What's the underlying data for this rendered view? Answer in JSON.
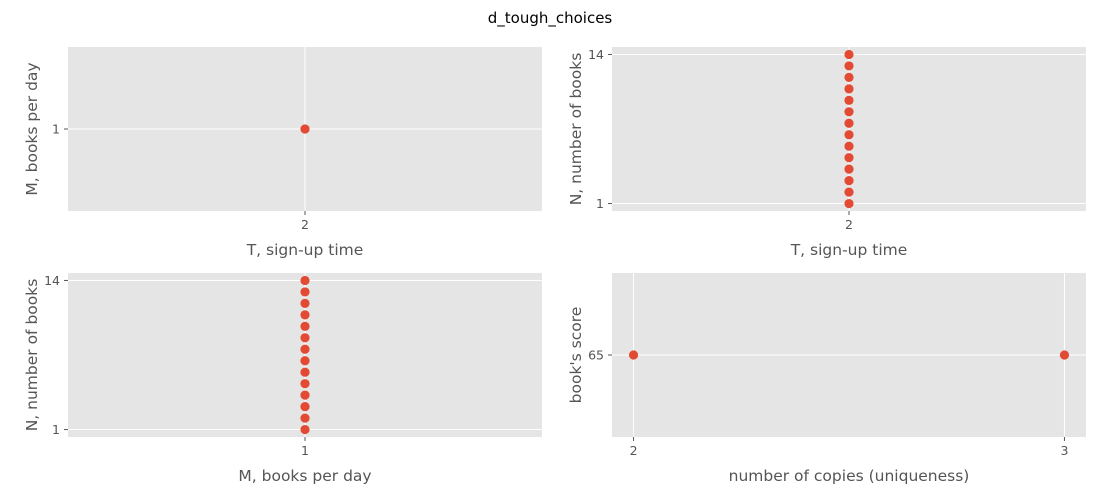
{
  "figure": {
    "title": "d_tough_choices",
    "background": "#ffffff",
    "panel_background": "#e5e5e5",
    "grid_color": "#ffffff",
    "marker_color": "#e24a33"
  },
  "chart_data": [
    {
      "type": "scatter",
      "title": "",
      "xlabel": "T, sign-up time",
      "ylabel": "M, books per day",
      "xlim": [
        1.945,
        2.055
      ],
      "ylim": [
        0.945,
        1.055
      ],
      "xticks": [
        2
      ],
      "xtick_labels": [
        "2"
      ],
      "yticks": [
        1
      ],
      "ytick_labels": [
        "1"
      ],
      "grid": true,
      "x": [
        2
      ],
      "y": [
        1
      ]
    },
    {
      "type": "scatter",
      "title": "",
      "xlabel": "T, sign-up time",
      "ylabel": "N, number of books",
      "xlim": [
        1.945,
        2.055
      ],
      "ylim": [
        0.35,
        14.65
      ],
      "xticks": [
        2
      ],
      "xtick_labels": [
        "2"
      ],
      "yticks": [
        1,
        14
      ],
      "ytick_labels": [
        "1",
        "14"
      ],
      "grid": true,
      "x": [
        2,
        2,
        2,
        2,
        2,
        2,
        2,
        2,
        2,
        2,
        2,
        2,
        2,
        2
      ],
      "y": [
        1,
        2,
        3,
        4,
        5,
        6,
        7,
        8,
        9,
        10,
        11,
        12,
        13,
        14
      ]
    },
    {
      "type": "scatter",
      "title": "",
      "xlabel": "M, books per day",
      "ylabel": "N, number of books",
      "xlim": [
        0.945,
        1.055
      ],
      "ylim": [
        0.35,
        14.65
      ],
      "xticks": [
        1
      ],
      "xtick_labels": [
        "1"
      ],
      "yticks": [
        1,
        14
      ],
      "ytick_labels": [
        "1",
        "14"
      ],
      "grid": true,
      "x": [
        1,
        1,
        1,
        1,
        1,
        1,
        1,
        1,
        1,
        1,
        1,
        1,
        1,
        1
      ],
      "y": [
        1,
        2,
        3,
        4,
        5,
        6,
        7,
        8,
        9,
        10,
        11,
        12,
        13,
        14
      ]
    },
    {
      "type": "scatter",
      "title": "",
      "xlabel": "number of copies (uniqueness)",
      "ylabel": "book's score",
      "xlim": [
        1.95,
        3.05
      ],
      "ylim": [
        61.75,
        68.25
      ],
      "xticks": [
        2,
        3
      ],
      "xtick_labels": [
        "2",
        "3"
      ],
      "yticks": [
        65
      ],
      "ytick_labels": [
        "65"
      ],
      "grid": true,
      "x": [
        2,
        3
      ],
      "y": [
        65,
        65
      ]
    }
  ]
}
